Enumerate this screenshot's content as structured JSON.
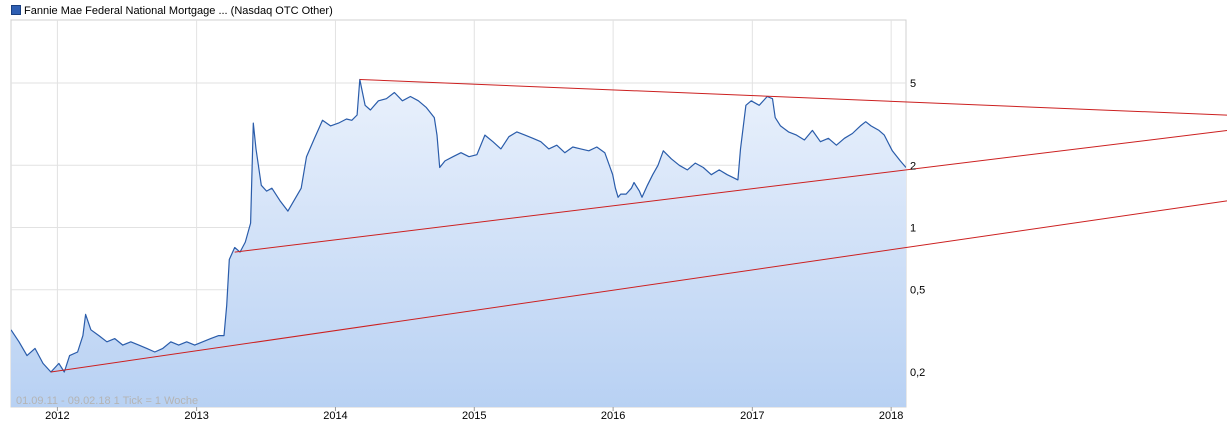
{
  "legend": {
    "label": "Fannie Mae Federal National Mortgage ... (Nasdaq OTC Other)",
    "color": "#2f5fb3"
  },
  "period_label": "01.09.11 - 09.02.18   1 Tick = 1 Woche",
  "chart_data": {
    "type": "area",
    "title": "",
    "xlabel": "",
    "ylabel": "",
    "y_scale": "log",
    "xlim": [
      "2011-09-01",
      "2018-02-09"
    ],
    "ylim": [
      0.15,
      8
    ],
    "grid": true,
    "x_ticks": [
      {
        "label": "2012",
        "date": "2012-01-01"
      },
      {
        "label": "2013",
        "date": "2013-01-01"
      },
      {
        "label": "2014",
        "date": "2014-01-01"
      },
      {
        "label": "2015",
        "date": "2015-01-01"
      },
      {
        "label": "2016",
        "date": "2016-01-01"
      },
      {
        "label": "2017",
        "date": "2017-01-01"
      },
      {
        "label": "2018",
        "date": "2018-01-01"
      }
    ],
    "y_ticks": [
      {
        "label": "5",
        "value": 5
      },
      {
        "label": "2",
        "value": 2
      },
      {
        "label": "1",
        "value": 1
      },
      {
        "label": "0,5",
        "value": 0.5
      },
      {
        "label": "0,2",
        "value": 0.2
      }
    ],
    "series": [
      {
        "color": "#2a5caa",
        "fill_top": "#eaf1fc",
        "fill_bottom": "#b8d1f3",
        "points": [
          [
            "2011-09-01",
            0.32
          ],
          [
            "2011-09-22",
            0.28
          ],
          [
            "2011-10-13",
            0.24
          ],
          [
            "2011-11-03",
            0.26
          ],
          [
            "2011-11-24",
            0.22
          ],
          [
            "2011-12-15",
            0.2
          ],
          [
            "2012-01-05",
            0.22
          ],
          [
            "2012-01-19",
            0.2
          ],
          [
            "2012-02-02",
            0.24
          ],
          [
            "2012-02-23",
            0.25
          ],
          [
            "2012-03-08",
            0.3
          ],
          [
            "2012-03-15",
            0.38
          ],
          [
            "2012-03-29",
            0.32
          ],
          [
            "2012-04-19",
            0.3
          ],
          [
            "2012-05-10",
            0.28
          ],
          [
            "2012-05-31",
            0.29
          ],
          [
            "2012-06-21",
            0.27
          ],
          [
            "2012-07-12",
            0.28
          ],
          [
            "2012-08-02",
            0.27
          ],
          [
            "2012-08-23",
            0.26
          ],
          [
            "2012-09-13",
            0.25
          ],
          [
            "2012-10-04",
            0.26
          ],
          [
            "2012-10-25",
            0.28
          ],
          [
            "2012-11-15",
            0.27
          ],
          [
            "2012-12-06",
            0.28
          ],
          [
            "2012-12-27",
            0.27
          ],
          [
            "2013-01-17",
            0.28
          ],
          [
            "2013-02-07",
            0.29
          ],
          [
            "2013-02-28",
            0.3
          ],
          [
            "2013-03-14",
            0.3
          ],
          [
            "2013-03-21",
            0.42
          ],
          [
            "2013-03-28",
            0.7
          ],
          [
            "2013-04-11",
            0.8
          ],
          [
            "2013-04-25",
            0.76
          ],
          [
            "2013-05-09",
            0.85
          ],
          [
            "2013-05-23",
            1.05
          ],
          [
            "2013-05-30",
            3.2
          ],
          [
            "2013-06-06",
            2.4
          ],
          [
            "2013-06-20",
            1.6
          ],
          [
            "2013-07-04",
            1.5
          ],
          [
            "2013-07-18",
            1.55
          ],
          [
            "2013-08-08",
            1.35
          ],
          [
            "2013-08-29",
            1.2
          ],
          [
            "2013-09-19",
            1.4
          ],
          [
            "2013-10-03",
            1.55
          ],
          [
            "2013-10-17",
            2.2
          ],
          [
            "2013-11-07",
            2.7
          ],
          [
            "2013-11-28",
            3.3
          ],
          [
            "2013-12-19",
            3.1
          ],
          [
            "2014-01-09",
            3.2
          ],
          [
            "2014-01-30",
            3.35
          ],
          [
            "2014-02-13",
            3.3
          ],
          [
            "2014-02-27",
            3.5
          ],
          [
            "2014-03-06",
            5.2
          ],
          [
            "2014-03-20",
            3.9
          ],
          [
            "2014-04-03",
            3.7
          ],
          [
            "2014-04-24",
            4.1
          ],
          [
            "2014-05-15",
            4.2
          ],
          [
            "2014-06-05",
            4.5
          ],
          [
            "2014-06-26",
            4.1
          ],
          [
            "2014-07-17",
            4.3
          ],
          [
            "2014-08-07",
            4.1
          ],
          [
            "2014-08-28",
            3.8
          ],
          [
            "2014-09-18",
            3.4
          ],
          [
            "2014-09-25",
            2.8
          ],
          [
            "2014-10-02",
            1.95
          ],
          [
            "2014-10-16",
            2.1
          ],
          [
            "2014-11-06",
            2.2
          ],
          [
            "2014-11-27",
            2.3
          ],
          [
            "2014-12-18",
            2.2
          ],
          [
            "2015-01-08",
            2.25
          ],
          [
            "2015-01-29",
            2.8
          ],
          [
            "2015-02-19",
            2.6
          ],
          [
            "2015-03-12",
            2.4
          ],
          [
            "2015-04-02",
            2.75
          ],
          [
            "2015-04-23",
            2.9
          ],
          [
            "2015-05-14",
            2.8
          ],
          [
            "2015-06-04",
            2.7
          ],
          [
            "2015-06-25",
            2.6
          ],
          [
            "2015-07-16",
            2.4
          ],
          [
            "2015-08-06",
            2.5
          ],
          [
            "2015-08-27",
            2.3
          ],
          [
            "2015-09-17",
            2.45
          ],
          [
            "2015-10-08",
            2.4
          ],
          [
            "2015-10-29",
            2.35
          ],
          [
            "2015-11-19",
            2.45
          ],
          [
            "2015-12-10",
            2.3
          ],
          [
            "2015-12-31",
            1.8
          ],
          [
            "2016-01-07",
            1.55
          ],
          [
            "2016-01-14",
            1.4
          ],
          [
            "2016-01-21",
            1.45
          ],
          [
            "2016-02-04",
            1.45
          ],
          [
            "2016-02-18",
            1.55
          ],
          [
            "2016-02-25",
            1.65
          ],
          [
            "2016-03-10",
            1.5
          ],
          [
            "2016-03-17",
            1.4
          ],
          [
            "2016-03-31",
            1.6
          ],
          [
            "2016-04-14",
            1.8
          ],
          [
            "2016-04-28",
            2.0
          ],
          [
            "2016-05-12",
            2.35
          ],
          [
            "2016-06-02",
            2.15
          ],
          [
            "2016-06-23",
            2.0
          ],
          [
            "2016-07-14",
            1.9
          ],
          [
            "2016-08-04",
            2.05
          ],
          [
            "2016-08-25",
            1.95
          ],
          [
            "2016-09-15",
            1.8
          ],
          [
            "2016-10-06",
            1.9
          ],
          [
            "2016-10-27",
            1.8
          ],
          [
            "2016-11-10",
            1.75
          ],
          [
            "2016-11-24",
            1.7
          ],
          [
            "2016-12-01",
            2.4
          ],
          [
            "2016-12-15",
            3.9
          ],
          [
            "2016-12-29",
            4.1
          ],
          [
            "2017-01-19",
            3.9
          ],
          [
            "2017-02-09",
            4.3
          ],
          [
            "2017-02-23",
            4.2
          ],
          [
            "2017-03-02",
            3.4
          ],
          [
            "2017-03-16",
            3.1
          ],
          [
            "2017-04-06",
            2.9
          ],
          [
            "2017-04-27",
            2.8
          ],
          [
            "2017-05-18",
            2.65
          ],
          [
            "2017-06-08",
            2.95
          ],
          [
            "2017-06-29",
            2.6
          ],
          [
            "2017-07-20",
            2.7
          ],
          [
            "2017-08-10",
            2.5
          ],
          [
            "2017-08-31",
            2.7
          ],
          [
            "2017-09-21",
            2.85
          ],
          [
            "2017-10-12",
            3.1
          ],
          [
            "2017-10-26",
            3.25
          ],
          [
            "2017-11-09",
            3.1
          ],
          [
            "2017-11-30",
            2.95
          ],
          [
            "2017-12-14",
            2.8
          ],
          [
            "2018-01-04",
            2.35
          ],
          [
            "2018-01-25",
            2.1
          ],
          [
            "2018-02-09",
            1.95
          ]
        ]
      }
    ],
    "trendlines": [
      {
        "color": "#cc2020",
        "start": [
          "2014-03-06",
          5.2
        ],
        "end": [
          "2018-02-09",
          4.05
        ],
        "extends_past_plot": true
      },
      {
        "color": "#cc2020",
        "start": [
          "2013-04-11",
          0.76
        ],
        "end": [
          "2018-02-09",
          1.9
        ],
        "extends_past_plot": true
      },
      {
        "color": "#cc2020",
        "start": [
          "2011-12-15",
          0.2
        ],
        "end": [
          "2018-02-09",
          0.8
        ],
        "extends_past_plot": true
      }
    ]
  }
}
